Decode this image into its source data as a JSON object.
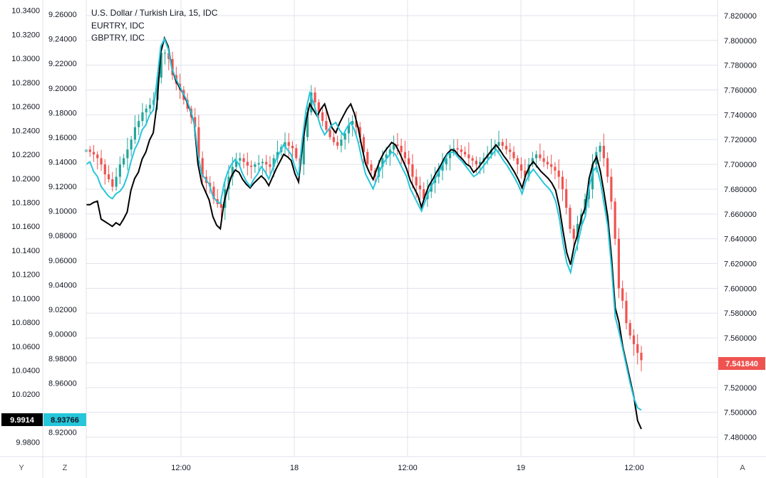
{
  "chart_data": {
    "type": "line",
    "title": "U.S. Dollar / Turkish Lira, 15, IDC",
    "legend": [
      "EURTRY, IDC",
      "GBPTRY, IDC"
    ],
    "x_ticks": [
      "12:00",
      "18",
      "12:00",
      "19",
      "12:00"
    ],
    "left_axis_1": {
      "ticks": [
        "10.3400",
        "10.3200",
        "10.3000",
        "10.2800",
        "10.2600",
        "10.2400",
        "10.2200",
        "10.2000",
        "10.1800",
        "10.1600",
        "10.1400",
        "10.1200",
        "10.1000",
        "10.0800",
        "10.0600",
        "10.0400",
        "10.0200",
        "10.0000",
        "9.9800"
      ],
      "ylim": [
        9.978,
        10.344
      ]
    },
    "left_axis_2": {
      "ticks": [
        "9.26000",
        "9.24000",
        "9.22000",
        "9.20000",
        "9.18000",
        "9.16000",
        "9.14000",
        "9.12000",
        "9.10000",
        "9.08000",
        "9.06000",
        "9.04000",
        "9.02000",
        "9.00000",
        "8.98000",
        "8.96000",
        "8.92000"
      ],
      "ylim": [
        8.91,
        9.267
      ]
    },
    "right_axis": {
      "ticks": [
        "7.820000",
        "7.800000",
        "7.780000",
        "7.760000",
        "7.740000",
        "7.720000",
        "7.700000",
        "7.680000",
        "7.660000",
        "7.640000",
        "7.620000",
        "7.600000",
        "7.580000",
        "7.560000",
        "7.540000",
        "7.520000",
        "7.500000",
        "7.480000"
      ],
      "ylim": [
        7.474,
        7.828
      ]
    },
    "last_values": {
      "usdtry": "7.541840",
      "eurtry": "9.9914",
      "gbptry": "8.93766"
    },
    "series": [
      {
        "name": "U.S. Dollar / Turkish Lira, 15, IDC",
        "style": "candles",
        "axis": "right",
        "values": [
          7.712,
          7.71,
          7.708,
          7.705,
          7.7,
          7.692,
          7.688,
          7.682,
          7.69,
          7.7,
          7.705,
          7.712,
          7.72,
          7.73,
          7.735,
          7.742,
          7.745,
          7.748,
          7.752,
          7.77,
          7.79,
          7.79,
          7.785,
          7.772,
          7.765,
          7.76,
          7.752,
          7.745,
          7.738,
          7.73,
          7.705,
          7.69,
          7.685,
          7.682,
          7.672,
          7.668,
          7.665,
          7.68,
          7.69,
          7.698,
          7.703,
          7.705,
          7.702,
          7.699,
          7.698,
          7.7,
          7.701,
          7.702,
          7.7,
          7.698,
          7.705,
          7.71,
          7.714,
          7.718,
          7.715,
          7.713,
          7.705,
          7.7,
          7.722,
          7.742,
          7.758,
          7.75,
          7.742,
          7.735,
          7.728,
          7.722,
          7.718,
          7.715,
          7.72,
          7.725,
          7.732,
          7.735,
          7.73,
          7.722,
          7.71,
          7.7,
          7.695,
          7.69,
          7.698,
          7.705,
          7.708,
          7.712,
          7.716,
          7.715,
          7.71,
          7.705,
          7.7,
          7.69,
          7.683,
          7.68,
          7.672,
          7.678,
          7.685,
          7.69,
          7.695,
          7.7,
          7.705,
          7.71,
          7.713,
          7.712,
          7.71,
          7.708,
          7.705,
          7.703,
          7.7,
          7.702,
          7.705,
          7.708,
          7.712,
          7.715,
          7.718,
          7.715,
          7.712,
          7.71,
          7.705,
          7.7,
          7.695,
          7.69,
          7.7,
          7.705,
          7.708,
          7.705,
          7.702,
          7.7,
          7.698,
          7.695,
          7.69,
          7.68,
          7.665,
          7.648,
          7.64,
          7.652,
          7.66,
          7.672,
          7.68,
          7.7,
          7.71,
          7.715,
          7.705,
          7.69,
          7.67,
          7.64,
          7.6,
          7.59,
          7.572,
          7.562,
          7.555,
          7.548,
          7.542
        ]
      },
      {
        "name": "EURTRY, IDC",
        "style": "line",
        "axis": "left_1",
        "color": "#000000",
        "values": [
          10.178,
          10.178,
          10.18,
          10.181,
          10.166,
          10.164,
          10.162,
          10.16,
          10.163,
          10.161,
          10.166,
          10.172,
          10.19,
          10.2,
          10.205,
          10.216,
          10.222,
          10.232,
          10.238,
          10.262,
          10.305,
          10.317,
          10.31,
          10.292,
          10.282,
          10.276,
          10.271,
          10.264,
          10.256,
          10.246,
          10.212,
          10.196,
          10.189,
          10.182,
          10.168,
          10.161,
          10.158,
          10.18,
          10.192,
          10.202,
          10.207,
          10.205,
          10.199,
          10.195,
          10.192,
          10.196,
          10.199,
          10.202,
          10.199,
          10.194,
          10.201,
          10.208,
          10.214,
          10.22,
          10.218,
          10.215,
          10.204,
          10.197,
          10.226,
          10.248,
          10.262,
          10.257,
          10.252,
          10.258,
          10.262,
          10.252,
          10.242,
          10.238,
          10.246,
          10.252,
          10.258,
          10.262,
          10.254,
          10.242,
          10.226,
          10.212,
          10.205,
          10.199,
          10.208,
          10.216,
          10.222,
          10.226,
          10.23,
          10.228,
          10.222,
          10.215,
          10.208,
          10.198,
          10.192,
          10.186,
          10.176,
          10.186,
          10.194,
          10.199,
          10.205,
          10.21,
          10.216,
          10.221,
          10.224,
          10.223,
          10.219,
          10.216,
          10.212,
          10.21,
          10.205,
          10.208,
          10.212,
          10.216,
          10.22,
          10.224,
          10.228,
          10.224,
          10.219,
          10.215,
          10.21,
          10.205,
          10.199,
          10.192,
          10.203,
          10.21,
          10.214,
          10.21,
          10.206,
          10.203,
          10.2,
          10.196,
          10.19,
          10.176,
          10.156,
          10.138,
          10.128,
          10.144,
          10.154,
          10.168,
          10.176,
          10.2,
          10.212,
          10.218,
          10.206,
          10.188,
          10.168,
          10.134,
          10.092,
          10.08,
          10.06,
          10.046,
          10.032,
          10.018,
          9.998,
          9.991
        ]
      },
      {
        "name": "GBPTRY, IDC",
        "style": "line",
        "axis": "left_2",
        "color": "#26C6DA",
        "values": [
          9.138,
          9.14,
          9.132,
          9.128,
          9.12,
          9.116,
          9.112,
          9.11,
          9.114,
          9.116,
          9.12,
          9.128,
          9.14,
          9.15,
          9.156,
          9.166,
          9.17,
          9.178,
          9.182,
          9.206,
          9.234,
          9.24,
          9.232,
          9.216,
          9.208,
          9.202,
          9.196,
          9.19,
          9.182,
          9.172,
          9.146,
          9.13,
          9.126,
          9.122,
          9.112,
          9.108,
          9.106,
          9.122,
          9.132,
          9.138,
          9.142,
          9.138,
          9.13,
          9.124,
          9.12,
          9.126,
          9.13,
          9.136,
          9.132,
          9.126,
          9.134,
          9.142,
          9.148,
          9.154,
          9.15,
          9.146,
          9.136,
          9.128,
          9.158,
          9.182,
          9.196,
          9.188,
          9.178,
          9.168,
          9.162,
          9.166,
          9.17,
          9.172,
          9.166,
          9.162,
          9.168,
          9.172,
          9.166,
          9.156,
          9.142,
          9.13,
          9.124,
          9.118,
          9.126,
          9.134,
          9.14,
          9.144,
          9.148,
          9.146,
          9.14,
          9.134,
          9.128,
          9.118,
          9.112,
          9.106,
          9.1,
          9.108,
          9.116,
          9.122,
          9.128,
          9.134,
          9.14,
          9.146,
          9.148,
          9.147,
          9.143,
          9.14,
          9.136,
          9.132,
          9.128,
          9.13,
          9.134,
          9.138,
          9.142,
          9.146,
          9.15,
          9.146,
          9.141,
          9.137,
          9.132,
          9.127,
          9.121,
          9.114,
          9.124,
          9.13,
          9.134,
          9.13,
          9.126,
          9.122,
          9.119,
          9.115,
          9.108,
          9.094,
          9.074,
          9.058,
          9.05,
          9.064,
          9.074,
          9.088,
          9.096,
          9.12,
          9.132,
          9.136,
          9.124,
          9.106,
          9.088,
          9.054,
          9.014,
          9.002,
          8.988,
          8.974,
          8.96,
          8.948,
          8.94,
          8.938
        ]
      }
    ]
  },
  "ui": {
    "bottom_left_y": "Y",
    "bottom_left_z": "Z",
    "bottom_right_a": "A"
  },
  "colors": {
    "up": "#26A69A",
    "down": "#EF5350",
    "eurtry": "#000000",
    "gbptry": "#26C6DA",
    "grid": "#E0E3EB"
  }
}
